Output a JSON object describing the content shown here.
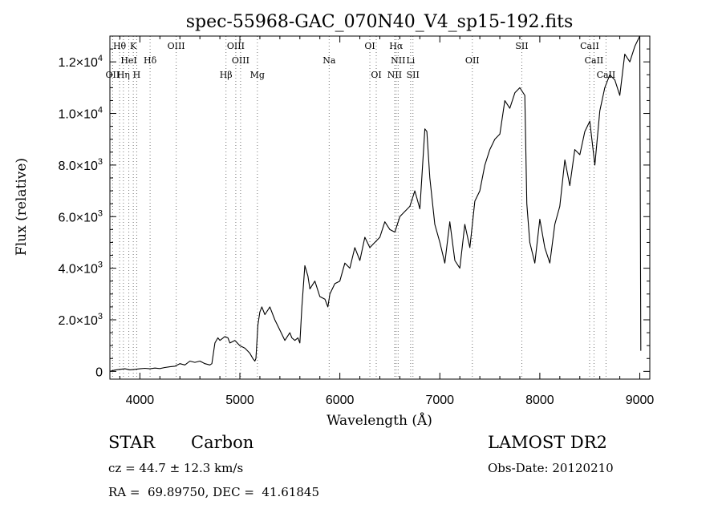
{
  "chart_data": {
    "type": "line",
    "title": "spec-55968-GAC_070N40_V4_sp15-192.fits",
    "xlabel": "Wavelength (Å)",
    "ylabel": "Flux (relative)",
    "xlim": [
      3700,
      9100
    ],
    "ylim": [
      -300,
      13000
    ],
    "x_ticks": [
      4000,
      5000,
      6000,
      7000,
      8000,
      9000
    ],
    "y_ticks": [
      {
        "value": 0,
        "label": "0"
      },
      {
        "value": 2000,
        "label": "2.0×10",
        "exp": "3"
      },
      {
        "value": 4000,
        "label": "4.0×10",
        "exp": "3"
      },
      {
        "value": 6000,
        "label": "6.0×10",
        "exp": "3"
      },
      {
        "value": 8000,
        "label": "8.0×10",
        "exp": "3"
      },
      {
        "value": 10000,
        "label": "1.0×10",
        "exp": "4"
      },
      {
        "value": 12000,
        "label": "1.2×10",
        "exp": "4"
      }
    ],
    "series": [
      {
        "x": [
          3700,
          3750,
          3800,
          3850,
          3900,
          3950,
          4000,
          4050,
          4100,
          4150,
          4200,
          4250,
          4300,
          4350,
          4400,
          4450,
          4500,
          4550,
          4600,
          4650,
          4700,
          4720,
          4750,
          4780,
          4800,
          4850,
          4880,
          4900,
          4950,
          5000,
          5050,
          5100,
          5130,
          5150,
          5160,
          5180,
          5200,
          5220,
          5250,
          5300,
          5350,
          5400,
          5450,
          5500,
          5520,
          5550,
          5580,
          5600,
          5620,
          5650,
          5680,
          5700,
          5750,
          5800,
          5850,
          5880,
          5900,
          5950,
          6000,
          6050,
          6100,
          6150,
          6200,
          6250,
          6300,
          6350,
          6400,
          6450,
          6500,
          6550,
          6600,
          6650,
          6700,
          6750,
          6800,
          6850,
          6870,
          6900,
          6950,
          7000,
          7050,
          7100,
          7150,
          7200,
          7250,
          7300,
          7350,
          7400,
          7450,
          7500,
          7550,
          7600,
          7650,
          7700,
          7750,
          7800,
          7850,
          7870,
          7900,
          7950,
          8000,
          8050,
          8100,
          8150,
          8200,
          8250,
          8300,
          8350,
          8400,
          8450,
          8500,
          8550,
          8600,
          8650,
          8700,
          8750,
          8800,
          8850,
          8900,
          8950,
          9000,
          9010
        ],
        "y": [
          0,
          50,
          80,
          100,
          60,
          80,
          100,
          120,
          100,
          130,
          110,
          150,
          180,
          200,
          300,
          250,
          400,
          350,
          400,
          300,
          250,
          300,
          1100,
          1300,
          1200,
          1350,
          1300,
          1100,
          1200,
          1000,
          900,
          700,
          500,
          400,
          500,
          1800,
          2300,
          2500,
          2200,
          2500,
          2000,
          1600,
          1200,
          1500,
          1300,
          1200,
          1300,
          1100,
          2500,
          4100,
          3700,
          3200,
          3500,
          2900,
          2800,
          2500,
          3000,
          3400,
          3500,
          4200,
          4000,
          4800,
          4300,
          5200,
          4800,
          5000,
          5200,
          5800,
          5500,
          5400,
          6000,
          6200,
          6400,
          7000,
          6300,
          9400,
          9300,
          7500,
          5700,
          5000,
          4200,
          5800,
          4300,
          4000,
          5700,
          4800,
          6600,
          7000,
          8000,
          8600,
          9000,
          9200,
          10500,
          10200,
          10800,
          11000,
          10700,
          6500,
          5000,
          4200,
          5900,
          4800,
          4200,
          5700,
          6400,
          8200,
          7200,
          8600,
          8400,
          9300,
          9700,
          8000,
          10100,
          11000,
          11500,
          11300,
          10700,
          12300,
          12000,
          12600,
          13000,
          800
        ],
        "color": "#000000"
      }
    ],
    "lines": [
      {
        "label": "Hθ",
        "x": 3797,
        "row": 0
      },
      {
        "label": "K",
        "x": 3934,
        "row": 0
      },
      {
        "label": "OIII",
        "x": 4363,
        "row": 0
      },
      {
        "label": "OIII",
        "x": 4959,
        "row": 0
      },
      {
        "label": "OI",
        "x": 6300,
        "row": 0
      },
      {
        "label": "Hα",
        "x": 6563,
        "row": 0
      },
      {
        "label": "SII",
        "x": 7820,
        "row": 0
      },
      {
        "label": "CaII",
        "x": 8498,
        "row": 0
      },
      {
        "label": "HeI",
        "x": 3889,
        "row": 1
      },
      {
        "label": "Hδ",
        "x": 4102,
        "row": 1
      },
      {
        "label": "OIII",
        "x": 5007,
        "row": 1
      },
      {
        "label": "Na",
        "x": 5893,
        "row": 1
      },
      {
        "label": "NII",
        "x": 6583,
        "row": 1
      },
      {
        "label": "Li",
        "x": 6708,
        "row": 1
      },
      {
        "label": "OII",
        "x": 7325,
        "row": 1
      },
      {
        "label": "CaII",
        "x": 8542,
        "row": 1
      },
      {
        "label": "OII",
        "x": 3727,
        "row": 2
      },
      {
        "label": "Hη",
        "x": 3835,
        "row": 2
      },
      {
        "label": "H",
        "x": 3968,
        "row": 2
      },
      {
        "label": "Hβ",
        "x": 4861,
        "row": 2
      },
      {
        "label": "Mg",
        "x": 5175,
        "row": 2
      },
      {
        "label": "OI",
        "x": 6364,
        "row": 2
      },
      {
        "label": "NII",
        "x": 6548,
        "row": 2
      },
      {
        "label": "SII",
        "x": 6731,
        "row": 2
      },
      {
        "label": "CaII",
        "x": 8662,
        "row": 2
      }
    ]
  },
  "info": {
    "class": "STAR",
    "subclass": "Carbon",
    "survey": "LAMOST DR2",
    "cz": "cz = 44.7 ± 12.3 km/s",
    "obs_date": "Obs-Date: 20120210",
    "coords": "RA =  69.89750, DEC =  41.61845"
  }
}
